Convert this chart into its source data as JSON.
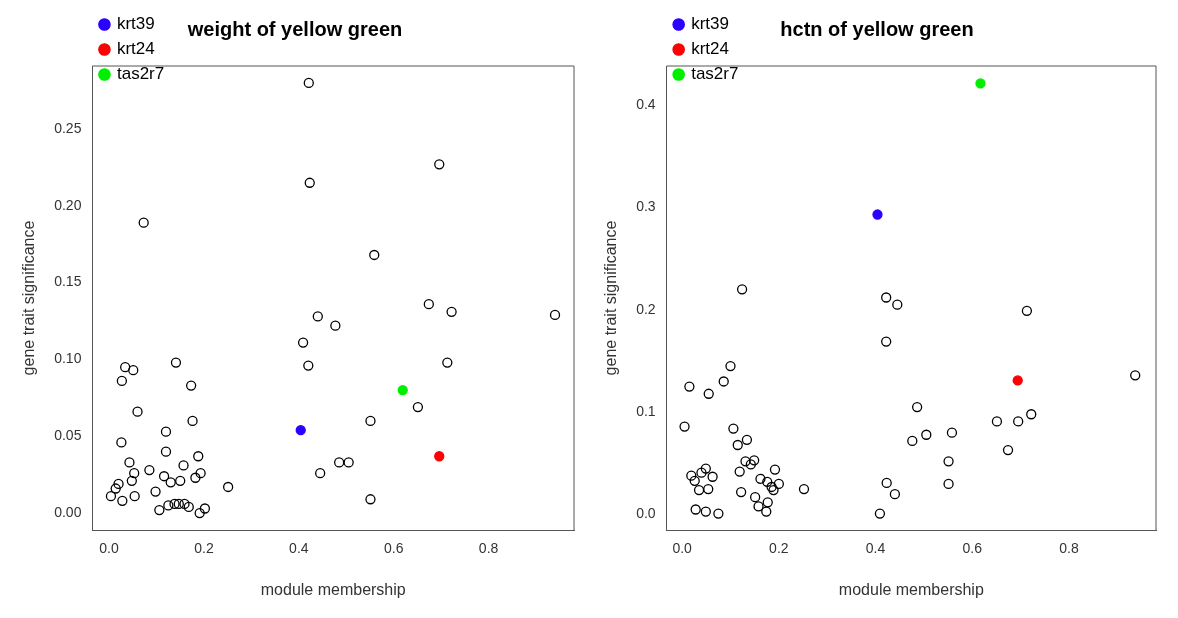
{
  "chart_data": [
    {
      "type": "scatter",
      "title": "weight of yellow green",
      "xlabel": "module membership",
      "ylabel": "gene trait significance",
      "xlim": [
        -0.035,
        0.98
      ],
      "ylim": [
        -0.011,
        0.291
      ],
      "xticks": [
        {
          "value": 0,
          "label": "0.0"
        },
        {
          "value": 0.2,
          "label": "0.2"
        },
        {
          "value": 0.4,
          "label": "0.4"
        },
        {
          "value": 0.6,
          "label": "0.6"
        },
        {
          "value": 0.8,
          "label": "0.8"
        }
      ],
      "yticks": [
        {
          "value": 0,
          "label": "0.00"
        },
        {
          "value": 0.05,
          "label": "0.05"
        },
        {
          "value": 0.1,
          "label": "0.10"
        },
        {
          "value": 0.15,
          "label": "0.15"
        },
        {
          "value": 0.2,
          "label": "0.20"
        },
        {
          "value": 0.25,
          "label": "0.25"
        }
      ],
      "grid": false,
      "legend": "top left",
      "marker": "circle",
      "series": [
        {
          "color": "#000000",
          "x": [
            0.421,
            0.696,
            0.423,
            0.073,
            0.559,
            0.674,
            0.722,
            0.94,
            0.44,
            0.477,
            0.409,
            0.42,
            0.713,
            0.141,
            0.034,
            0.051,
            0.027,
            0.173,
            0.06,
            0.651,
            0.551,
            0.176,
            0.12,
            0.026,
            0.12,
            0.188,
            0.043,
            0.485,
            0.505,
            0.157,
            0.085,
            0.053,
            0.116,
            0.193,
            0.182,
            0.445,
            0.048,
            0.15,
            0.13,
            0.02,
            0.014,
            0.251,
            0.004,
            0.054,
            0.098,
            0.028,
            0.551,
            0.106,
            0.125,
            0.147,
            0.168,
            0.202,
            0.191,
            0.138,
            0.159
          ],
          "values": [
            0.28,
            0.227,
            0.215,
            0.189,
            0.168,
            0.136,
            0.131,
            0.129,
            0.128,
            0.122,
            0.111,
            0.096,
            0.098,
            0.098,
            0.095,
            0.093,
            0.086,
            0.083,
            0.066,
            0.069,
            0.06,
            0.06,
            0.053,
            0.046,
            0.04,
            0.037,
            0.033,
            0.033,
            0.033,
            0.031,
            0.028,
            0.026,
            0.024,
            0.026,
            0.023,
            0.026,
            0.021,
            0.021,
            0.02,
            0.019,
            0.016,
            0.017,
            0.011,
            0.011,
            0.014,
            0.008,
            0.009,
            0.002,
            0.005,
            0.006,
            0.004,
            0.003,
            0.0,
            0.006,
            0.006
          ]
        },
        {
          "name": "krt39",
          "color": "#2b00ff",
          "x": [
            0.404
          ],
          "values": [
            0.054
          ]
        },
        {
          "name": "krt24",
          "color": "#ff0000",
          "x": [
            0.696
          ],
          "values": [
            0.037
          ]
        },
        {
          "name": "tas2r7",
          "color": "#00ee00",
          "x": [
            0.619
          ],
          "values": [
            0.08
          ]
        }
      ]
    },
    {
      "type": "scatter",
      "title": "hctn of yellow green",
      "xlabel": "module membership",
      "ylabel": "gene trait significance",
      "xlim": [
        -0.032,
        0.98
      ],
      "ylim": [
        -0.015,
        0.438
      ],
      "xticks": [
        {
          "value": 0,
          "label": "0.0"
        },
        {
          "value": 0.2,
          "label": "0.2"
        },
        {
          "value": 0.4,
          "label": "0.4"
        },
        {
          "value": 0.6,
          "label": "0.6"
        },
        {
          "value": 0.8,
          "label": "0.8"
        }
      ],
      "yticks": [
        {
          "value": 0,
          "label": "0.0"
        },
        {
          "value": 0.1,
          "label": "0.1"
        },
        {
          "value": 0.2,
          "label": "0.2"
        },
        {
          "value": 0.3,
          "label": "0.3"
        },
        {
          "value": 0.4,
          "label": "0.4"
        }
      ],
      "grid": false,
      "legend": "top left",
      "marker": "circle",
      "series": [
        {
          "color": "#000000",
          "x": [
            0.124,
            0.422,
            0.445,
            0.713,
            0.422,
            0.1,
            0.937,
            0.086,
            0.015,
            0.055,
            0.486,
            0.722,
            0.651,
            0.695,
            0.005,
            0.106,
            0.558,
            0.505,
            0.476,
            0.134,
            0.115,
            0.674,
            0.551,
            0.131,
            0.149,
            0.142,
            0.192,
            0.049,
            0.04,
            0.119,
            0.019,
            0.063,
            0.026,
            0.162,
            0.176,
            0.2,
            0.185,
            0.189,
            0.054,
            0.035,
            0.252,
            0.423,
            0.551,
            0.44,
            0.122,
            0.151,
            0.177,
            0.158,
            0.174,
            0.028,
            0.049,
            0.075,
            0.409
          ],
          "values": [
            0.22,
            0.212,
            0.205,
            0.199,
            0.169,
            0.145,
            0.136,
            0.13,
            0.125,
            0.118,
            0.105,
            0.098,
            0.091,
            0.091,
            0.086,
            0.084,
            0.08,
            0.078,
            0.072,
            0.073,
            0.068,
            0.063,
            0.052,
            0.052,
            0.053,
            0.049,
            0.044,
            0.045,
            0.041,
            0.042,
            0.038,
            0.037,
            0.033,
            0.035,
            0.032,
            0.03,
            0.027,
            0.024,
            0.025,
            0.024,
            0.025,
            0.031,
            0.03,
            0.02,
            0.022,
            0.017,
            0.012,
            0.008,
            0.003,
            0.005,
            0.003,
            0.001,
            0.001
          ]
        },
        {
          "name": "krt39",
          "color": "#2b00ff",
          "x": [
            0.404
          ],
          "values": [
            0.293
          ]
        },
        {
          "name": "krt24",
          "color": "#ff0000",
          "x": [
            0.694
          ],
          "values": [
            0.131
          ]
        },
        {
          "name": "tas2r7",
          "color": "#00ee00",
          "x": [
            0.617
          ],
          "values": [
            0.421
          ]
        }
      ]
    }
  ]
}
